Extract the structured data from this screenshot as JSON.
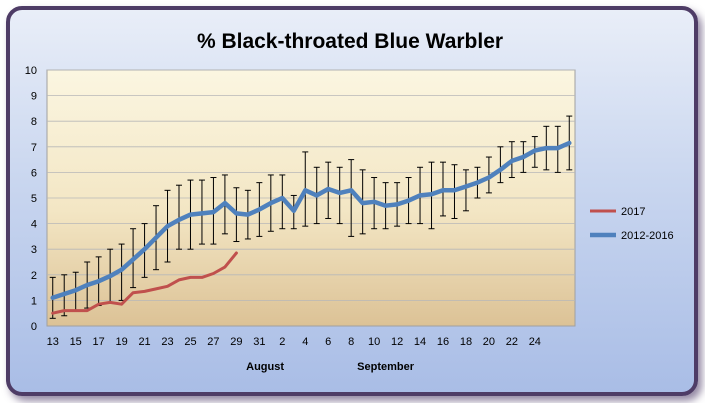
{
  "chart_data": {
    "type": "line",
    "title": "% Black-throated Blue Warbler",
    "xlabel": "",
    "ylabel": "",
    "ylim": [
      0,
      10
    ],
    "y_ticks": [
      "0",
      "1",
      "2",
      "3",
      "4",
      "5",
      "6",
      "7",
      "8",
      "9",
      "10"
    ],
    "x_ticks": [
      "13",
      "15",
      "17",
      "19",
      "21",
      "23",
      "25",
      "27",
      "29",
      "31",
      "2",
      "4",
      "6",
      "8",
      "10",
      "12",
      "14",
      "16",
      "18",
      "20",
      "22",
      "24"
    ],
    "month_labels": [
      "August",
      "September"
    ],
    "grid": true,
    "legend_position": "right",
    "series": [
      {
        "name": "2017",
        "color": "#c0504d",
        "values": [
          0.5,
          0.6,
          0.6,
          0.6,
          0.85,
          0.92,
          0.85,
          1.3,
          1.35,
          1.45,
          1.55,
          1.8,
          1.9,
          1.9,
          2.05,
          2.3,
          2.85
        ]
      },
      {
        "name": "2012-2016",
        "color": "#4f81bd",
        "values": [
          1.1,
          1.25,
          1.4,
          1.6,
          1.75,
          1.95,
          2.2,
          2.6,
          3.0,
          3.45,
          3.9,
          4.15,
          4.35,
          4.4,
          4.45,
          4.8,
          4.4,
          4.35,
          4.55,
          4.8,
          5.0,
          4.5,
          5.3,
          5.1,
          5.35,
          5.2,
          5.3,
          4.8,
          4.85,
          4.7,
          4.75,
          4.9,
          5.1,
          5.15,
          5.3,
          5.3,
          5.45,
          5.6,
          5.8,
          6.1,
          6.45,
          6.6,
          6.85,
          6.95,
          6.95,
          7.15
        ],
        "error_low": [
          0.3,
          0.4,
          0.6,
          0.7,
          0.8,
          0.9,
          1.0,
          1.5,
          1.9,
          2.2,
          2.5,
          3.0,
          3.0,
          3.2,
          3.2,
          3.6,
          3.3,
          3.4,
          3.5,
          3.7,
          3.8,
          3.8,
          3.9,
          4.0,
          4.2,
          4.0,
          3.5,
          3.6,
          3.8,
          3.8,
          3.9,
          4.0,
          4.0,
          3.8,
          4.3,
          4.2,
          4.5,
          5.0,
          5.2,
          5.6,
          5.8,
          6.0,
          6.2,
          6.1,
          6.0,
          6.1
        ],
        "error_high": [
          1.9,
          2.0,
          2.1,
          2.5,
          2.7,
          3.0,
          3.2,
          3.8,
          4.0,
          4.7,
          5.3,
          5.5,
          5.7,
          5.7,
          5.8,
          5.9,
          5.4,
          5.3,
          5.6,
          5.9,
          5.9,
          5.1,
          6.8,
          6.2,
          6.4,
          6.2,
          6.5,
          6.1,
          5.8,
          5.6,
          5.6,
          5.8,
          6.2,
          6.4,
          6.4,
          6.3,
          6.1,
          6.2,
          6.6,
          7.0,
          7.2,
          7.2,
          7.4,
          7.8,
          7.8,
          8.2
        ]
      }
    ]
  }
}
